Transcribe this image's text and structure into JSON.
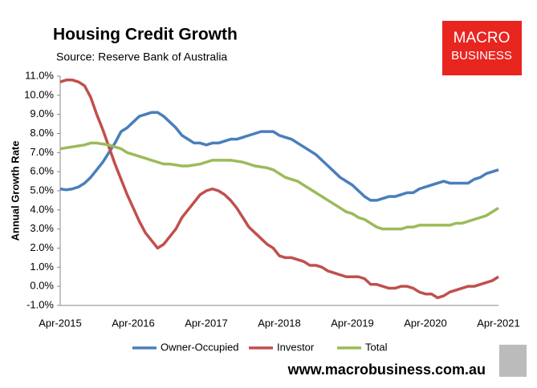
{
  "chart_data": {
    "type": "line",
    "title": "Housing Credit Growth",
    "subtitle": "Source: Reserve Bank of Australia",
    "y_label": "Annual Growth Rate",
    "categories": [
      "Apr-2015",
      null,
      null,
      null,
      null,
      null,
      null,
      null,
      null,
      null,
      null,
      null,
      "Apr-2016",
      null,
      null,
      null,
      null,
      null,
      null,
      null,
      null,
      null,
      null,
      null,
      "Apr-2017",
      null,
      null,
      null,
      null,
      null,
      null,
      null,
      null,
      null,
      null,
      null,
      "Apr-2018",
      null,
      null,
      null,
      null,
      null,
      null,
      null,
      null,
      null,
      null,
      null,
      "Apr-2019",
      null,
      null,
      null,
      null,
      null,
      null,
      null,
      null,
      null,
      null,
      null,
      "Apr-2020",
      null,
      null,
      null,
      null,
      null,
      null,
      null,
      null,
      null,
      null,
      null,
      "Apr-2021"
    ],
    "series": [
      {
        "name": "Owner-Occupied",
        "color": "#4a7ebb",
        "values": [
          5.1,
          5.05,
          5.1,
          5.2,
          5.4,
          5.7,
          6.1,
          6.5,
          7.0,
          7.5,
          8.1,
          8.3,
          8.6,
          8.9,
          9.0,
          9.1,
          9.1,
          8.9,
          8.6,
          8.3,
          7.9,
          7.7,
          7.5,
          7.5,
          7.4,
          7.5,
          7.5,
          7.6,
          7.7,
          7.7,
          7.8,
          7.9,
          8.0,
          8.1,
          8.1,
          8.1,
          7.9,
          7.8,
          7.7,
          7.5,
          7.3,
          7.1,
          6.9,
          6.6,
          6.3,
          6.0,
          5.7,
          5.5,
          5.3,
          5.0,
          4.7,
          4.5,
          4.5,
          4.6,
          4.7,
          4.7,
          4.8,
          4.9,
          4.9,
          5.1,
          5.2,
          5.3,
          5.4,
          5.5,
          5.4,
          5.4,
          5.4,
          5.4,
          5.6,
          5.7,
          5.9,
          6.0,
          6.1
        ]
      },
      {
        "name": "Investor",
        "color": "#c0504d",
        "values": [
          10.7,
          10.8,
          10.8,
          10.7,
          10.5,
          9.9,
          9.0,
          8.2,
          7.3,
          6.4,
          5.6,
          4.8,
          4.1,
          3.4,
          2.8,
          2.4,
          2.0,
          2.2,
          2.6,
          3.0,
          3.6,
          4.0,
          4.4,
          4.8,
          5.0,
          5.1,
          5.0,
          4.8,
          4.5,
          4.1,
          3.6,
          3.1,
          2.8,
          2.5,
          2.2,
          2.0,
          1.6,
          1.5,
          1.5,
          1.4,
          1.3,
          1.1,
          1.1,
          1.0,
          0.8,
          0.7,
          0.6,
          0.5,
          0.5,
          0.5,
          0.4,
          0.1,
          0.1,
          0.0,
          -0.1,
          -0.1,
          0.0,
          0.0,
          -0.1,
          -0.3,
          -0.4,
          -0.4,
          -0.6,
          -0.5,
          -0.3,
          -0.2,
          -0.1,
          0.0,
          0.0,
          0.1,
          0.2,
          0.3,
          0.5
        ]
      },
      {
        "name": "Total",
        "color": "#9bbb59",
        "values": [
          7.2,
          7.25,
          7.3,
          7.35,
          7.4,
          7.5,
          7.5,
          7.45,
          7.4,
          7.3,
          7.2,
          7.0,
          6.9,
          6.8,
          6.7,
          6.6,
          6.5,
          6.4,
          6.4,
          6.35,
          6.3,
          6.3,
          6.35,
          6.4,
          6.5,
          6.6,
          6.6,
          6.6,
          6.6,
          6.55,
          6.5,
          6.4,
          6.3,
          6.25,
          6.2,
          6.1,
          5.9,
          5.7,
          5.6,
          5.5,
          5.3,
          5.1,
          4.9,
          4.7,
          4.5,
          4.3,
          4.1,
          3.9,
          3.8,
          3.6,
          3.5,
          3.3,
          3.1,
          3.0,
          3.0,
          3.0,
          3.0,
          3.1,
          3.1,
          3.2,
          3.2,
          3.2,
          3.2,
          3.2,
          3.2,
          3.3,
          3.3,
          3.4,
          3.5,
          3.6,
          3.7,
          3.9,
          4.1
        ]
      }
    ],
    "ylim": [
      -1,
      11
    ],
    "yticks": [
      {
        "value": -1,
        "label": "-1.0%"
      },
      {
        "value": 0,
        "label": "0.0%"
      },
      {
        "value": 1,
        "label": "1.0%"
      },
      {
        "value": 2,
        "label": "2.0%"
      },
      {
        "value": 3,
        "label": "3.0%"
      },
      {
        "value": 4,
        "label": "4.0%"
      },
      {
        "value": 5,
        "label": "5.0%"
      },
      {
        "value": 6,
        "label": "6.0%"
      },
      {
        "value": 7,
        "label": "7.0%"
      },
      {
        "value": 8,
        "label": "8.0%"
      },
      {
        "value": 9,
        "label": "9.0%"
      },
      {
        "value": 10,
        "label": "10.0%"
      },
      {
        "value": 11,
        "label": "11.0%"
      }
    ],
    "grid": false,
    "legend": "bottom"
  },
  "branding": {
    "logo": [
      "MACRO",
      "BUSINESS"
    ],
    "url": "www.macrobusiness.com.au"
  }
}
